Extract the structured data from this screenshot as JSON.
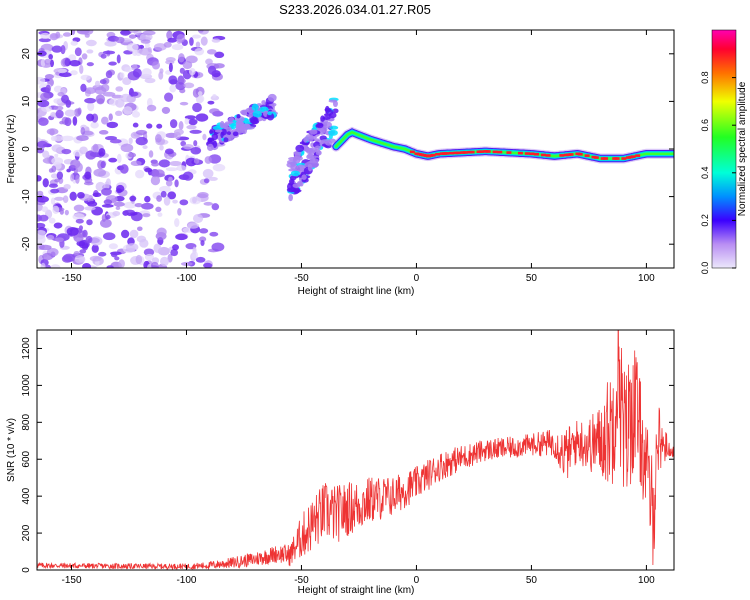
{
  "title": "S233.2026.034.01.27.R05",
  "chart_data": [
    {
      "type": "heatmap",
      "xlabel": "Height of straight line (km)",
      "ylabel": "Frequency (Hz)",
      "xlim": [
        -165,
        112
      ],
      "ylim": [
        -25,
        25
      ],
      "xticks": [
        -150,
        -100,
        -50,
        0,
        50,
        100
      ],
      "yticks": [
        -20,
        -10,
        0,
        10,
        20
      ],
      "colorbar": {
        "label": "Normalized spectral amplitude",
        "range": [
          0,
          1
        ],
        "ticks": [
          "0.0",
          "0.2",
          "0.4",
          "0.6",
          "0.8"
        ],
        "tick_values": [
          0,
          0.2,
          0.4,
          0.6,
          0.8
        ]
      },
      "ridge": {
        "description": "dominant frequency vs height",
        "points": [
          [
            -35,
            0.5
          ],
          [
            -30,
            3
          ],
          [
            -28,
            3.5
          ],
          [
            -20,
            2
          ],
          [
            -10,
            0.5
          ],
          [
            -5,
            0
          ],
          [
            0,
            -1
          ],
          [
            5,
            -1.5
          ],
          [
            10,
            -1
          ],
          [
            30,
            -0.5
          ],
          [
            50,
            -1
          ],
          [
            60,
            -1.5
          ],
          [
            70,
            -1
          ],
          [
            80,
            -2
          ],
          [
            90,
            -2
          ],
          [
            100,
            -1
          ],
          [
            112,
            -1
          ]
        ]
      },
      "noise_clouds": [
        {
          "x_start": -90,
          "x_end": -62,
          "y_start": 2,
          "y_end": 9
        },
        {
          "x_start": -55,
          "x_end": -35,
          "y_start": -10,
          "y_end": 12
        }
      ]
    },
    {
      "type": "line",
      "xlabel": "Height of straight line (km)",
      "ylabel": "SNR (10 * v/v)",
      "xlim": [
        -165,
        112
      ],
      "ylim": [
        0,
        1300
      ],
      "xticks": [
        -150,
        -100,
        -50,
        0,
        50,
        100
      ],
      "yticks": [
        0,
        200,
        400,
        600,
        800,
        1000,
        1200
      ],
      "series": [
        {
          "name": "SNR",
          "color": "#ee3333",
          "x": [
            -165,
            -140,
            -120,
            -100,
            -90,
            -80,
            -70,
            -60,
            -55,
            -50,
            -45,
            -40,
            -35,
            -30,
            -25,
            -20,
            -10,
            0,
            10,
            20,
            30,
            40,
            50,
            60,
            65,
            70,
            75,
            80,
            85,
            88,
            90,
            95,
            100,
            103,
            105,
            110,
            112
          ],
          "values": [
            25,
            22,
            20,
            20,
            25,
            40,
            60,
            90,
            80,
            180,
            250,
            320,
            300,
            330,
            350,
            380,
            400,
            470,
            560,
            610,
            650,
            660,
            680,
            690,
            620,
            700,
            680,
            700,
            780,
            1150,
            700,
            900,
            550,
            300,
            720,
            650,
            640
          ],
          "noise_amplitude": [
            15,
            15,
            15,
            15,
            20,
            30,
            40,
            50,
            60,
            120,
            150,
            160,
            160,
            150,
            140,
            130,
            110,
            90,
            80,
            70,
            60,
            60,
            60,
            80,
            150,
            120,
            150,
            200,
            350,
            450,
            400,
            350,
            250,
            300,
            200,
            40,
            30
          ]
        }
      ]
    }
  ],
  "colors": {
    "series": "#ee3333"
  }
}
